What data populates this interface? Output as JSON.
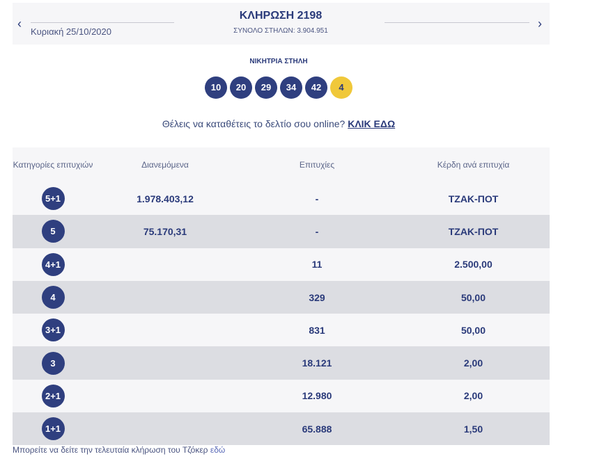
{
  "header": {
    "prev_arrow": "‹",
    "next_arrow": "›",
    "date": "Κυριακή 25/10/2020",
    "title": "ΚΛΗΡΩΣΗ 2198",
    "total_columns": "ΣΥΝΟΛΟ ΣΤΗΛΩΝ: 3.904.951"
  },
  "winning": {
    "label": "ΝΙΚΗΤΡΙΑ ΣΤΗΛΗ",
    "numbers": [
      "10",
      "20",
      "29",
      "34",
      "42"
    ],
    "joker": "4"
  },
  "promo": {
    "text": "Θέλεις να καταθέτεις το δελτίο σου online?",
    "link": "ΚΛΙΚ ΕΔΩ"
  },
  "table": {
    "headers": [
      "Κατηγορίες επιτυχιών",
      "Διανεμόμενα",
      "Επιτυχίες",
      "Κέρδη ανά επιτυχία"
    ],
    "rows": [
      {
        "category": "5+1",
        "distributed": "1.978.403,12",
        "winners": "-",
        "prize": "ΤΖΑΚ-ΠΟΤ"
      },
      {
        "category": "5",
        "distributed": "75.170,31",
        "winners": "-",
        "prize": "ΤΖΑΚ-ΠΟΤ"
      },
      {
        "category": "4+1",
        "distributed": "",
        "winners": "11",
        "prize": "2.500,00"
      },
      {
        "category": "4",
        "distributed": "",
        "winners": "329",
        "prize": "50,00"
      },
      {
        "category": "3+1",
        "distributed": "",
        "winners": "831",
        "prize": "50,00"
      },
      {
        "category": "3",
        "distributed": "",
        "winners": "18.121",
        "prize": "2,00"
      },
      {
        "category": "2+1",
        "distributed": "",
        "winners": "12.980",
        "prize": "2,00"
      },
      {
        "category": "1+1",
        "distributed": "",
        "winners": "65.888",
        "prize": "1,50"
      }
    ]
  },
  "footer": {
    "text": "Μπορείτε να δείτε την τελευταία κλήρωση του Τζόκερ",
    "link": "εδώ"
  }
}
